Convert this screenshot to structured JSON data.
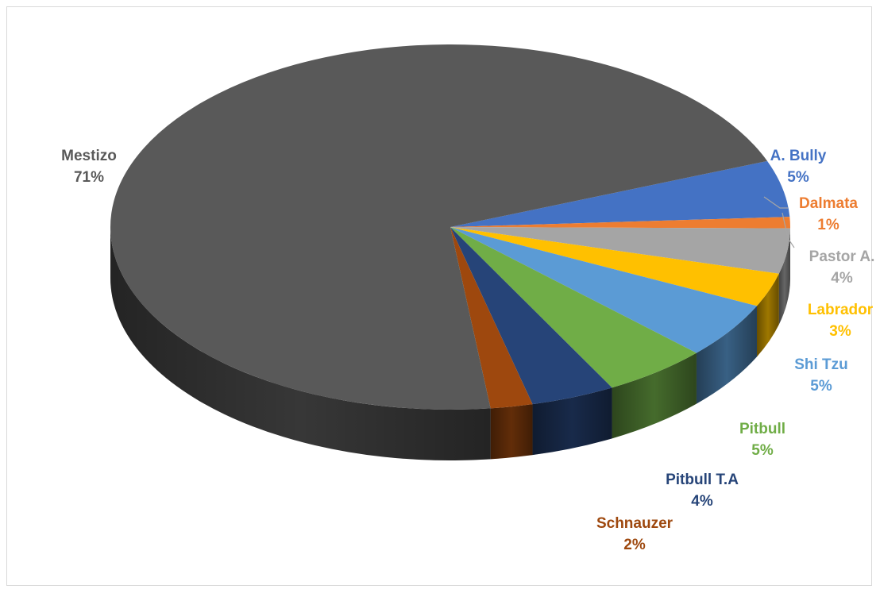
{
  "chart_data": {
    "type": "pie",
    "style": "3d",
    "slices": [
      {
        "name": "Mestizo",
        "value": 71,
        "label": "71%",
        "color": "#595959"
      },
      {
        "name": "A. Bully",
        "value": 5,
        "label": "5%",
        "color": "#4472c4"
      },
      {
        "name": "Dalmata",
        "value": 1,
        "label": "1%",
        "color": "#ed7d31"
      },
      {
        "name": "Pastor A.",
        "value": 4,
        "label": "4%",
        "color": "#a5a5a5"
      },
      {
        "name": "Labrador",
        "value": 3,
        "label": "3%",
        "color": "#ffc000"
      },
      {
        "name": "Shi Tzu",
        "value": 5,
        "label": "5%",
        "color": "#5b9bd5"
      },
      {
        "name": "Pitbull",
        "value": 5,
        "label": "5%",
        "color": "#70ad47"
      },
      {
        "name": "Pitbull T.A",
        "value": 4,
        "label": "4%",
        "color": "#264478"
      },
      {
        "name": "Schnauzer",
        "value": 2,
        "label": "2%",
        "color": "#9e480e"
      }
    ]
  }
}
